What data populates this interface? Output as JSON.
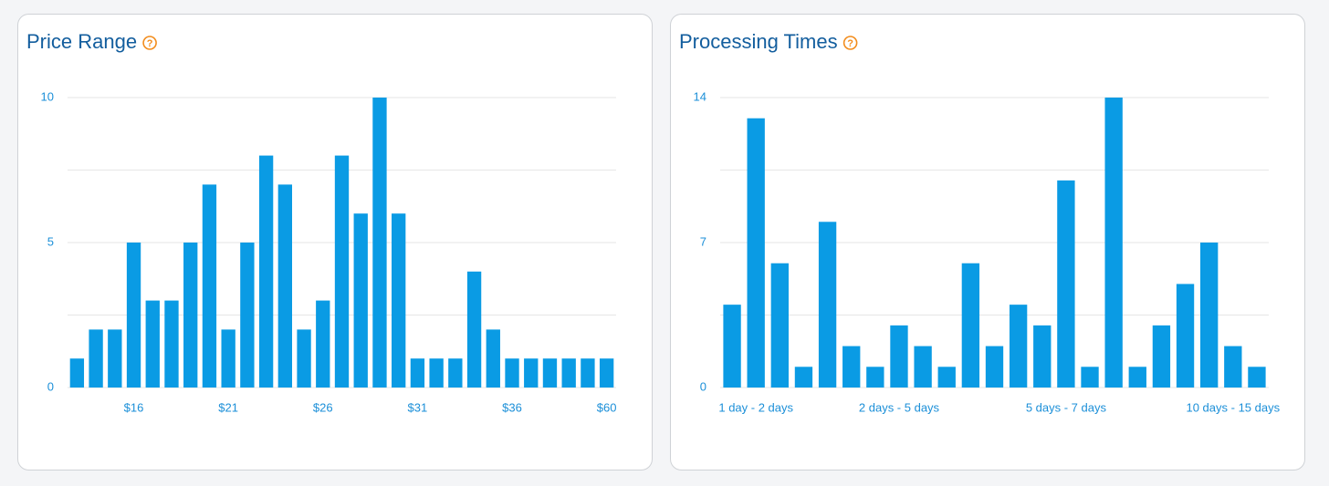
{
  "chart_data": [
    {
      "type": "bar",
      "title": "Price Range",
      "help_icon": "?",
      "categories": [
        null,
        null,
        null,
        "$16",
        null,
        null,
        null,
        null,
        "$21",
        null,
        null,
        null,
        null,
        "$26",
        null,
        null,
        null,
        null,
        "$31",
        null,
        null,
        null,
        null,
        "$36",
        null,
        null,
        null,
        null,
        "$60"
      ],
      "values": [
        1,
        2,
        2,
        5,
        3,
        3,
        5,
        7,
        2,
        5,
        8,
        7,
        2,
        3,
        8,
        6,
        10,
        6,
        1,
        1,
        1,
        4,
        2,
        1,
        1,
        1,
        1,
        1,
        1
      ],
      "color": "#0a9be4",
      "ylim": [
        0,
        10
      ],
      "yticks": [
        0,
        5,
        10
      ],
      "minor_yticks": [
        2.5,
        7.5
      ],
      "grid": true
    },
    {
      "type": "bar",
      "title": "Processing Times",
      "help_icon": "?",
      "categories": [
        null,
        "1 day - 2 days",
        null,
        null,
        null,
        null,
        null,
        "2 days - 5 days",
        null,
        null,
        null,
        null,
        null,
        null,
        "5 days - 7 days",
        null,
        null,
        null,
        null,
        null,
        null,
        "10 days - 15 days",
        null
      ],
      "values": [
        4,
        13,
        6,
        1,
        8,
        2,
        1,
        3,
        2,
        1,
        6,
        2,
        4,
        3,
        10,
        1,
        14,
        1,
        3,
        5,
        7,
        2,
        1
      ],
      "color": "#0a9be4",
      "ylim": [
        0,
        14
      ],
      "yticks": [
        0,
        7,
        14
      ],
      "minor_yticks": [
        3.5,
        10.5
      ],
      "grid": true
    }
  ]
}
